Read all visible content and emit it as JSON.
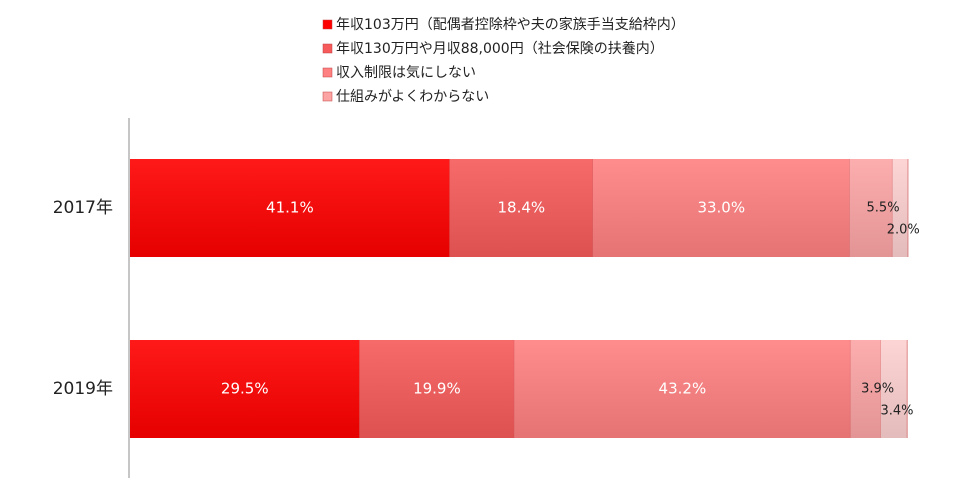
{
  "chart_data": {
    "type": "bar",
    "orientation": "horizontal",
    "stacked": true,
    "categories": [
      "2017年",
      "2019年"
    ],
    "series": [
      {
        "name": "年収103万円（配偶者控除枠や夫の家族手当支給枠内）",
        "values": [
          41.1,
          29.5
        ],
        "color": "#ff0000",
        "label_color": "#ffffff"
      },
      {
        "name": "年収130万円や月収88,000円（社会保険の扶養内）",
        "values": [
          18.4,
          19.9
        ],
        "color": "#f65a5a",
        "label_color": "#ffffff"
      },
      {
        "name": "収入制限は気にしない",
        "values": [
          33.0,
          43.2
        ],
        "color": "#ff8080",
        "label_color": "#222222"
      },
      {
        "name": "仕組みがよくわからない",
        "values": [
          5.5,
          3.9
        ],
        "color": "#fca4a4",
        "label_color": "#222222"
      },
      {
        "name": "",
        "values": [
          2.0,
          3.4
        ],
        "color": "#fdd0d0",
        "label_color": "#222222"
      }
    ],
    "value_labels": [
      [
        "41.1%",
        "18.4%",
        "33.0%",
        "5.5%",
        "2.0%"
      ],
      [
        "29.5%",
        "19.9%",
        "43.2%",
        "3.9%",
        "3.4%"
      ]
    ],
    "xlim": [
      0,
      100
    ],
    "legend_position": "top",
    "grid": false
  }
}
